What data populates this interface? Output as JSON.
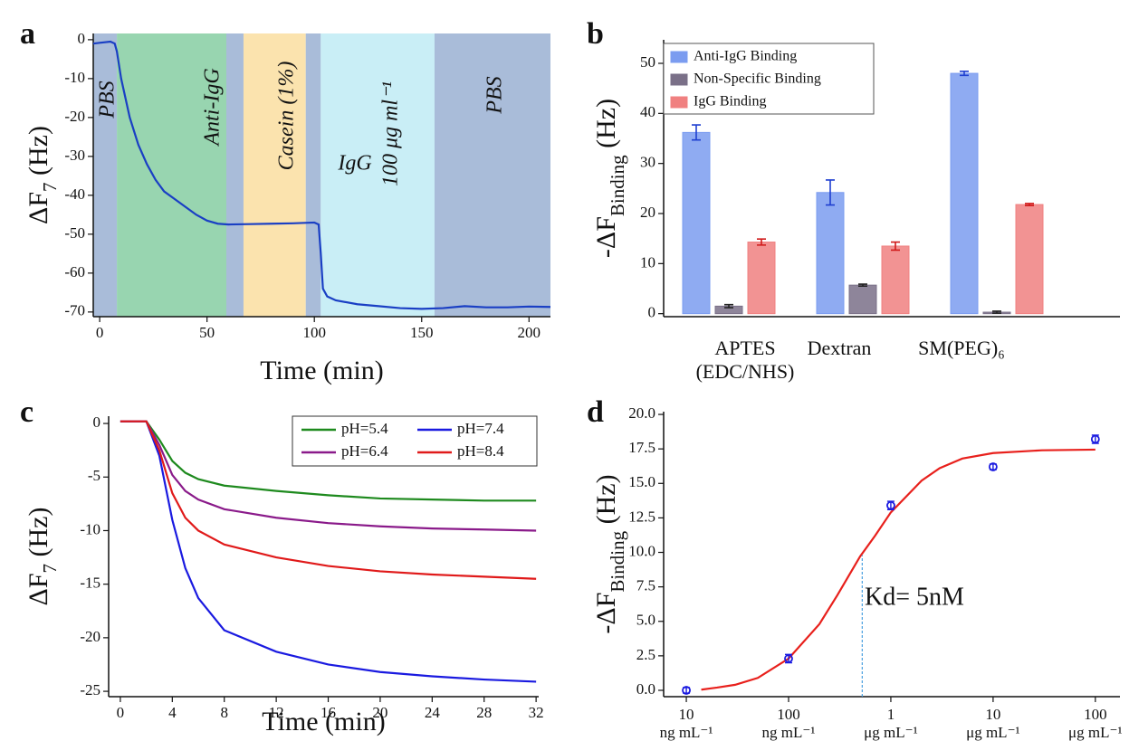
{
  "chart_data": [
    {
      "type": "line",
      "panel_label": "a",
      "x_label": "Time (min)",
      "y_label": {
        "main": "ΔF",
        "sub": "7",
        "unit": " (Hz)"
      },
      "xlim": [
        -3,
        210
      ],
      "ylim": [
        -71.2,
        1.6
      ],
      "xticks": [
        0,
        50,
        100,
        150,
        200
      ],
      "yticks": [
        0,
        -10,
        -20,
        -30,
        -40,
        -50,
        -60,
        -70
      ],
      "regions": [
        {
          "start": -3,
          "end": 8,
          "color": "#a9bcd9"
        },
        {
          "start": 8,
          "end": 59,
          "color": "#98d5b0"
        },
        {
          "start": 59,
          "end": 67,
          "color": "#a9bcd9"
        },
        {
          "start": 67,
          "end": 96,
          "color": "#fbe3ae"
        },
        {
          "start": 96,
          "end": 103,
          "color": "#a9bcd9"
        },
        {
          "start": 103,
          "end": 156,
          "color": "#c9eef6"
        },
        {
          "start": 156,
          "end": 210,
          "color": "#a9bcd9"
        }
      ],
      "annotations": [
        "PBS",
        "Anti-IgG",
        "Casein (1%)",
        "IgG",
        "100 μg ml⁻¹",
        "PBS"
      ],
      "color": "#1a3fc4",
      "x": [
        -3,
        0,
        5,
        7,
        8,
        10,
        14,
        18,
        22,
        26,
        30,
        35,
        40,
        45,
        50,
        55,
        60,
        70,
        80,
        90,
        100,
        102,
        103,
        104,
        106,
        110,
        120,
        130,
        140,
        150,
        160,
        170,
        180,
        190,
        200,
        210
      ],
      "values": [
        -1,
        -0.8,
        -0.5,
        -1,
        -3,
        -10,
        -20,
        -27,
        -32,
        -36,
        -39,
        -41,
        -43,
        -45,
        -46.5,
        -47.3,
        -47.5,
        -47.4,
        -47.3,
        -47.2,
        -47,
        -47.5,
        -55,
        -64,
        -66,
        -67,
        -68,
        -68.5,
        -69,
        -69.2,
        -69,
        -68.5,
        -68.8,
        -68.8,
        -68.6,
        -68.7
      ]
    },
    {
      "type": "bar",
      "panel_label": "b",
      "y_label": {
        "main": "-ΔF",
        "sub": "Binding",
        "unit": " (Hz)"
      },
      "categories": [
        "APTES\n(EDC/NHS)",
        "Dextran",
        "SM(PEG)₆"
      ],
      "ylim": [
        -0.6,
        54.7
      ],
      "yticks": [
        0,
        10,
        20,
        30,
        40,
        50
      ],
      "series": [
        {
          "name": "Anti-IgG Binding",
          "color": "#7b9cf0",
          "values": [
            36.2,
            24.2,
            48.0
          ],
          "errors": [
            1.5,
            2.5,
            0.4
          ]
        },
        {
          "name": "Non-Specific Binding",
          "color": "#7a7088",
          "values": [
            1.5,
            5.7,
            0.3
          ],
          "errors": [
            0.3,
            0.2,
            0.2
          ]
        },
        {
          "name": "IgG Binding",
          "color": "#f08080",
          "values": [
            14.3,
            13.5,
            21.8
          ],
          "errors": [
            0.6,
            0.8,
            0.2
          ]
        }
      ],
      "legend": "top-left"
    },
    {
      "type": "line",
      "panel_label": "c",
      "x_label": "Time (min)",
      "y_label": {
        "main": "ΔF",
        "sub": "7",
        "unit": " (Hz)"
      },
      "xlim": [
        -0.9,
        32.2
      ],
      "ylim": [
        -25.5,
        0.68
      ],
      "xticks": [
        0,
        4,
        8,
        12,
        16,
        20,
        24,
        28,
        32
      ],
      "yticks": [
        0,
        -5,
        -10,
        -15,
        -20,
        -25
      ],
      "x": [
        0,
        2,
        3,
        4,
        5,
        6,
        8,
        12,
        16,
        20,
        24,
        28,
        32
      ],
      "series": [
        {
          "name": "pH=5.4",
          "color": "#1e8a1e",
          "values": [
            0.2,
            0.2,
            -1.5,
            -3.5,
            -4.6,
            -5.2,
            -5.8,
            -6.3,
            -6.7,
            -7.0,
            -7.1,
            -7.2,
            -7.2
          ]
        },
        {
          "name": "pH=6.4",
          "color": "#8a1a8a",
          "values": [
            0.2,
            0.2,
            -2,
            -4.8,
            -6.3,
            -7.1,
            -8,
            -8.8,
            -9.3,
            -9.6,
            -9.8,
            -9.9,
            -10
          ]
        },
        {
          "name": "pH=7.4",
          "color": "#1a1ae0",
          "values": [
            0.2,
            0.2,
            -3,
            -9,
            -13.5,
            -16.3,
            -19.3,
            -21.3,
            -22.5,
            -23.2,
            -23.6,
            -23.9,
            -24.1
          ]
        },
        {
          "name": "pH=8.4",
          "color": "#e01a1a",
          "values": [
            0.2,
            0.2,
            -2.5,
            -6.5,
            -8.8,
            -10,
            -11.3,
            -12.5,
            -13.3,
            -13.8,
            -14.1,
            -14.3,
            -14.5
          ]
        }
      ],
      "legend": "top-right"
    },
    {
      "type": "scatter",
      "panel_label": "d",
      "log_x": true,
      "y_label": {
        "main": "-ΔF",
        "sub": "Binding",
        "unit": " (Hz)"
      },
      "xlim": [
        6,
        174000
      ],
      "ylim": [
        -0.46,
        20.2
      ],
      "xticks": [
        {
          "value": 10,
          "label": "10\nng mL⁻¹"
        },
        {
          "value": 100,
          "label": "100\nng mL⁻¹"
        },
        {
          "value": 1000,
          "label": "1\nμg mL⁻¹"
        },
        {
          "value": 10000,
          "label": "10\nμg mL⁻¹"
        },
        {
          "value": 100000,
          "label": "100\nμg mL⁻¹"
        }
      ],
      "yticks": [
        {
          "value": 0,
          "label": "0.0"
        },
        2.5,
        {
          "value": 5,
          "label": "5.0"
        },
        7.5,
        {
          "value": 10,
          "label": "10.0"
        },
        12.5,
        {
          "value": 15,
          "label": "15.0"
        },
        17.5,
        {
          "value": 20,
          "label": "20.0"
        }
      ],
      "color": "#1a1ae0",
      "x": [
        10,
        100,
        1000,
        10000,
        100000
      ],
      "values": [
        0,
        2.3,
        13.4,
        16.2,
        18.2
      ],
      "errors": [
        0.2,
        0.3,
        0.3,
        0.2,
        0.3
      ],
      "fit": {
        "color": "#e8201c",
        "x": [
          14,
          20,
          30,
          50,
          100,
          200,
          300,
          500,
          700,
          1000,
          2000,
          3000,
          5000,
          10000,
          30000,
          100000
        ],
        "values": [
          0.05,
          0.2,
          0.4,
          0.9,
          2.3,
          4.8,
          6.9,
          9.7,
          11.2,
          12.9,
          15.2,
          16.1,
          16.8,
          17.2,
          17.4,
          17.45
        ]
      },
      "kd_line": {
        "x": 525,
        "y": 9.8
      },
      "annotations": [
        "Kd= 5nM"
      ]
    }
  ]
}
